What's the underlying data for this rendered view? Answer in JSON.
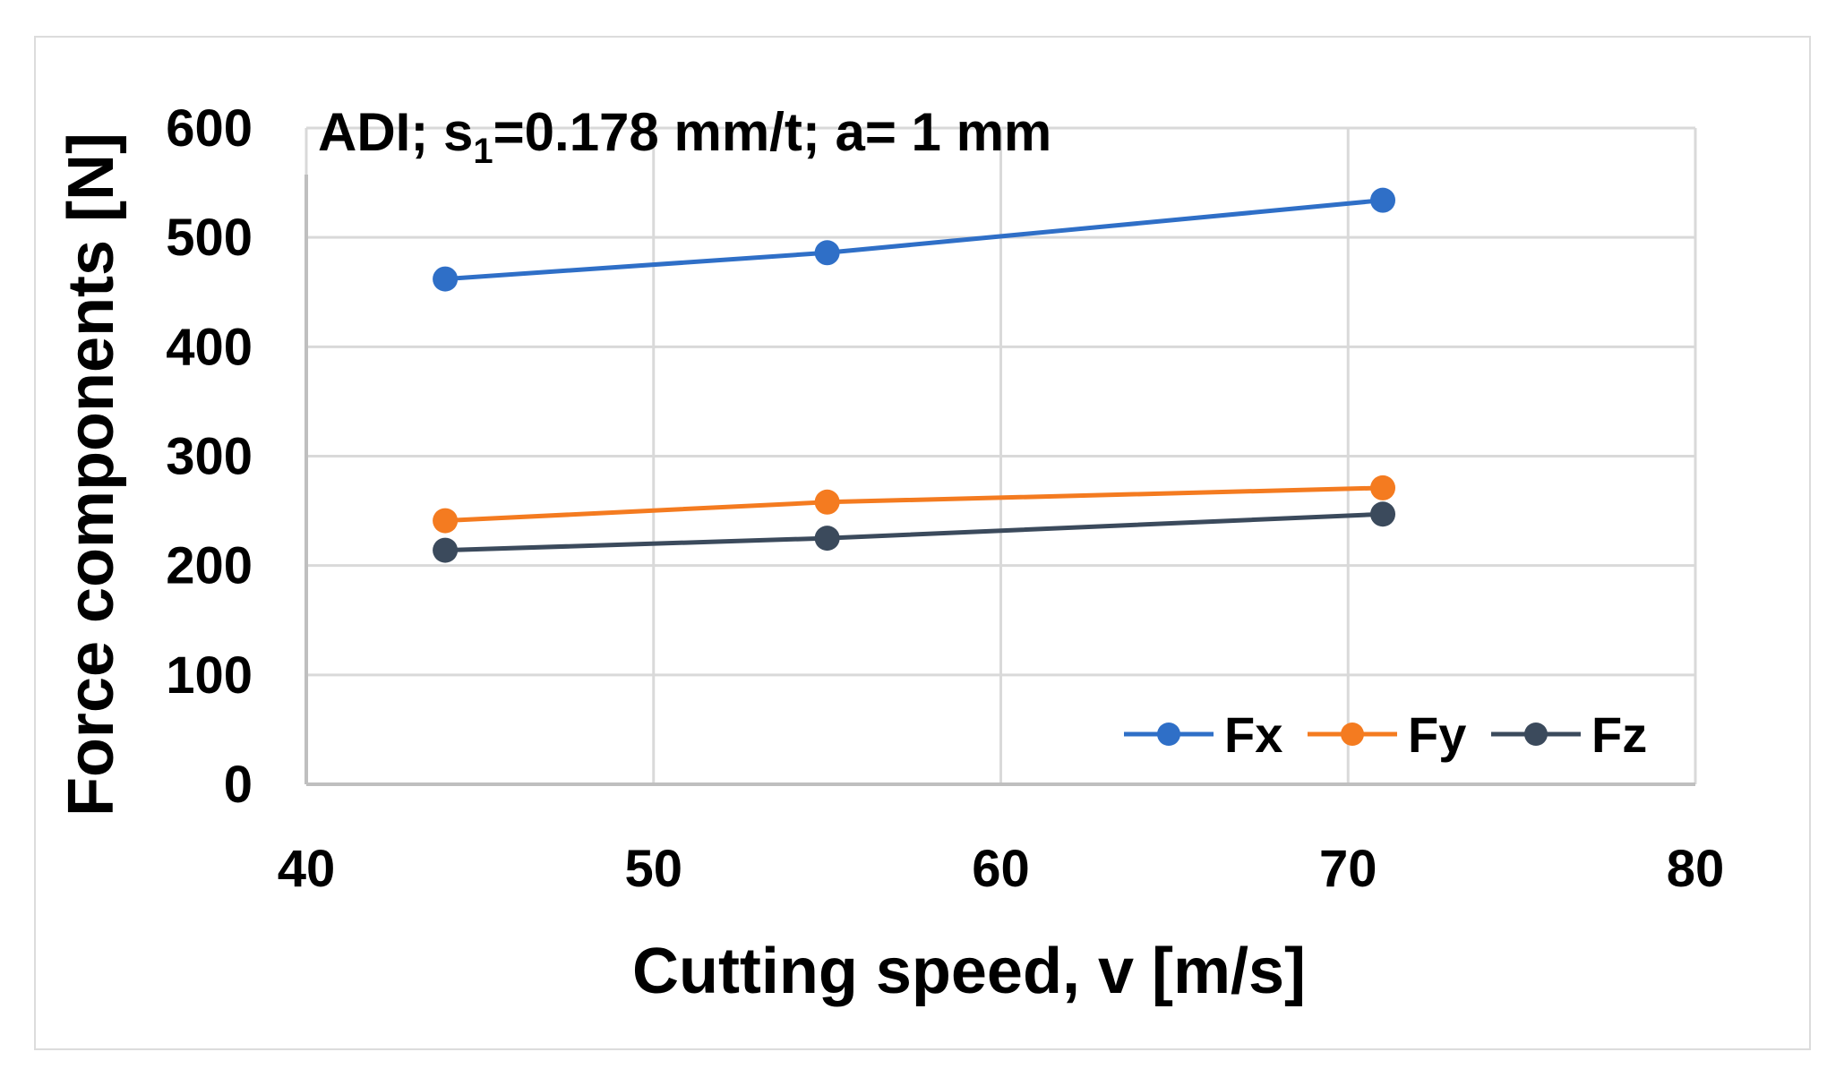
{
  "chart_data": {
    "type": "line",
    "title_main": "ADI; s",
    "title_sub": "1",
    "title_rest": "=0.178 mm/t; a= 1 mm",
    "xlabel": "Cutting speed, v [m/s]",
    "ylabel": "Force components [N]",
    "xlim": [
      40,
      80
    ],
    "ylim": [
      0,
      600
    ],
    "xticks": [
      "40",
      "50",
      "60",
      "70",
      "80"
    ],
    "yticks": [
      "0",
      "100",
      "200",
      "300",
      "400",
      "500",
      "600"
    ],
    "grid": true,
    "legend_position": "bottom-right",
    "x": [
      44,
      55,
      71
    ],
    "series": [
      {
        "name": "Fx",
        "color": "#2F6FC7",
        "values": [
          462,
          486,
          534
        ]
      },
      {
        "name": "Fy",
        "color": "#F47B20",
        "values": [
          241,
          258,
          271
        ]
      },
      {
        "name": "Fz",
        "color": "#3B4A5C",
        "values": [
          214,
          225,
          247
        ]
      }
    ]
  }
}
